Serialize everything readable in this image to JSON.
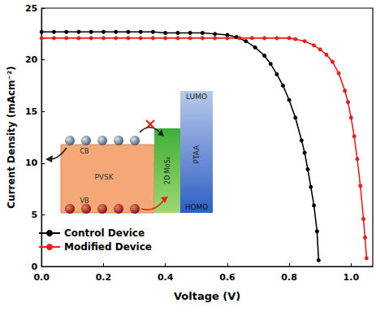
{
  "chart_data": {
    "type": "line",
    "x_label": "Voltage (V)",
    "y_label": "Current Density (mAcm⁻²)",
    "xlim": [
      0,
      1.07
    ],
    "ylim": [
      0,
      25
    ],
    "xticks": [
      {
        "value": 0,
        "label": "0.0"
      },
      {
        "value": 0.2,
        "label": "0.2"
      },
      {
        "value": 0.4,
        "label": "0.4"
      },
      {
        "value": 0.6,
        "label": "0.6"
      },
      {
        "value": 0.8,
        "label": "0.8"
      },
      {
        "value": 1.0,
        "label": "1.0"
      }
    ],
    "yticks": [
      0,
      5,
      10,
      15,
      20,
      25
    ],
    "grid": false,
    "legend": "lower left",
    "marker": "circle",
    "annotations": [
      "LUMO",
      "CB",
      "PVSK",
      "2D MoS₂",
      "PTAA",
      "VB",
      "HOMO"
    ],
    "series": [
      {
        "name": "Control Device",
        "color": "#000000",
        "x": [
          0,
          0.04,
          0.08,
          0.12,
          0.16,
          0.2,
          0.24,
          0.28,
          0.32,
          0.36,
          0.4,
          0.44,
          0.48,
          0.52,
          0.56,
          0.6,
          0.63,
          0.66,
          0.69,
          0.72,
          0.74,
          0.76,
          0.78,
          0.8,
          0.82,
          0.84,
          0.85,
          0.86,
          0.87,
          0.88,
          0.89,
          0.895
        ],
        "values": [
          22.7,
          22.7,
          22.7,
          22.7,
          22.7,
          22.7,
          22.7,
          22.7,
          22.7,
          22.7,
          22.6,
          22.6,
          22.6,
          22.6,
          22.5,
          22.4,
          22.2,
          21.8,
          21.2,
          20.4,
          19.6,
          18.6,
          17.5,
          16.1,
          14.4,
          12.2,
          11.0,
          9.4,
          7.7,
          5.9,
          3.4,
          0.6
        ]
      },
      {
        "name": "Modified Device",
        "color": "#e8201c",
        "x": [
          0,
          0.04,
          0.08,
          0.12,
          0.16,
          0.2,
          0.24,
          0.28,
          0.32,
          0.36,
          0.4,
          0.44,
          0.48,
          0.52,
          0.56,
          0.6,
          0.64,
          0.68,
          0.72,
          0.76,
          0.8,
          0.82,
          0.85,
          0.88,
          0.9,
          0.92,
          0.94,
          0.96,
          0.98,
          0.99,
          1.0,
          1.01,
          1.02,
          1.03,
          1.04,
          1.045,
          1.05
        ],
        "values": [
          22.1,
          22.1,
          22.1,
          22.1,
          22.1,
          22.1,
          22.1,
          22.1,
          22.1,
          22.1,
          22.1,
          22.1,
          22.1,
          22.1,
          22.1,
          22.1,
          22.1,
          22.1,
          22.1,
          22.1,
          22.1,
          22.0,
          21.8,
          21.4,
          21.0,
          20.5,
          19.8,
          18.7,
          17.0,
          15.9,
          14.4,
          12.6,
          10.4,
          7.8,
          4.6,
          2.8,
          0.8
        ]
      }
    ]
  }
}
